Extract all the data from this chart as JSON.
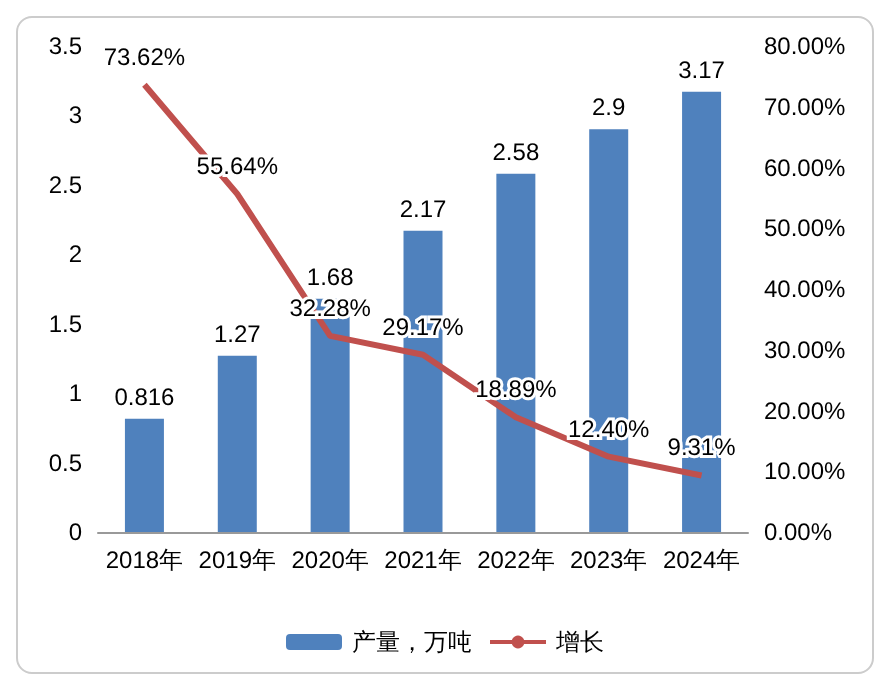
{
  "chart_data": {
    "type": "bar",
    "categories": [
      "2018年",
      "2019年",
      "2020年",
      "2021年",
      "2022年",
      "2023年",
      "2024年"
    ],
    "series": [
      {
        "name": "产量，万吨",
        "color": "#4f81bd",
        "values": [
          0.816,
          1.27,
          1.68,
          2.17,
          2.58,
          2.9,
          3.17
        ],
        "data_labels": true
      },
      {
        "name": "增长",
        "type": "line",
        "axis": "y2",
        "color": "#c0504d",
        "values": [
          73.62,
          55.64,
          32.28,
          29.17,
          18.89,
          12.4,
          9.31
        ],
        "value_labels": [
          "73.62%",
          "55.64%",
          "32.28%",
          "29.17%",
          "18.89%",
          "12.40%",
          "9.31%"
        ],
        "marker": "none"
      }
    ],
    "ylim": [
      0,
      3.5
    ],
    "yticks": [
      0,
      0.5,
      1,
      1.5,
      2,
      2.5,
      3,
      3.5
    ],
    "y2lim": [
      0,
      80
    ],
    "y2ticks": [
      {
        "value": 0,
        "label": "0.00%"
      },
      {
        "value": 10,
        "label": "10.00%"
      },
      {
        "value": 20,
        "label": "20.00%"
      },
      {
        "value": 30,
        "label": "30.00%"
      },
      {
        "value": 40,
        "label": "40.00%"
      },
      {
        "value": 50,
        "label": "50.00%"
      },
      {
        "value": 60,
        "label": "60.00%"
      },
      {
        "value": 70,
        "label": "70.00%"
      },
      {
        "value": 80,
        "label": "80.00%"
      }
    ],
    "legend": "bottom",
    "grid": false
  }
}
